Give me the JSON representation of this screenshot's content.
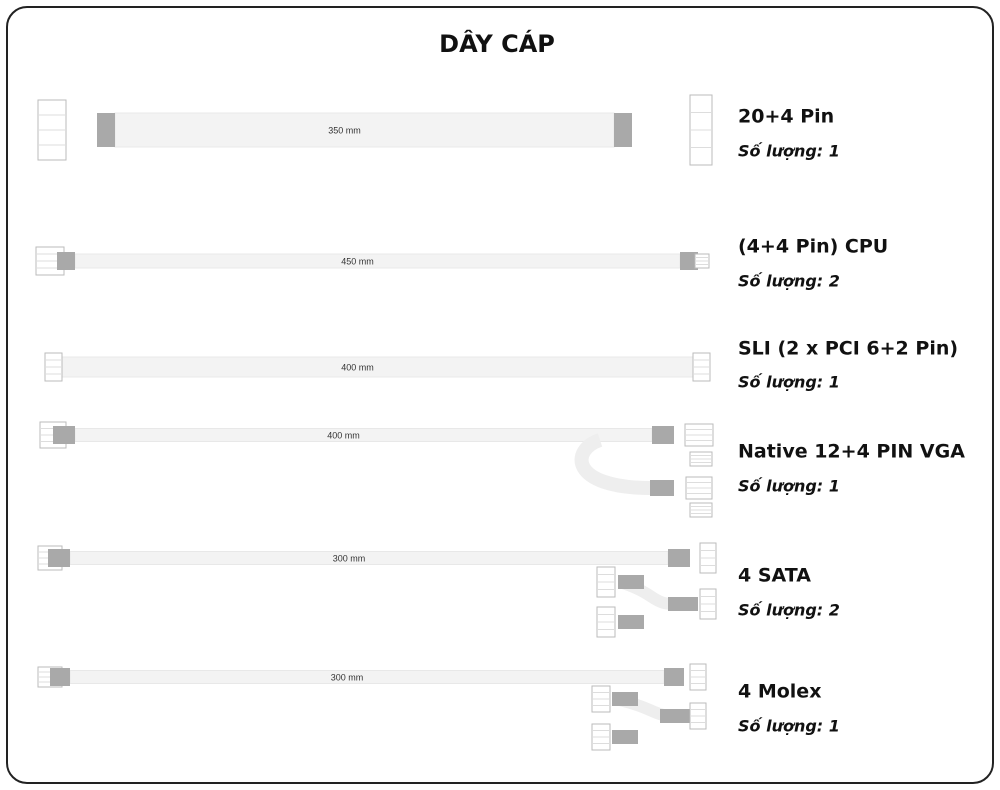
{
  "header": {
    "title": "DÂY CÁP"
  },
  "cables": [
    {
      "name": "20+4 Pin",
      "quantity": "Số lượng: 1",
      "length": "350 mm"
    },
    {
      "name": "(4+4 Pin) CPU",
      "quantity": "Số lượng: 2",
      "length": "450 mm"
    },
    {
      "name": "SLI (2 x PCI 6+2 Pin)",
      "quantity": "Số lượng: 1",
      "length": "400 mm"
    },
    {
      "name": "Native 12+4 PIN VGA",
      "quantity": "Số lượng: 1",
      "length": "400 mm"
    },
    {
      "name": "4 SATA",
      "quantity": "Số lượng: 2",
      "length": "300 mm"
    },
    {
      "name": "4 Molex",
      "quantity": "Số lượng: 1",
      "length": "300 mm"
    }
  ]
}
